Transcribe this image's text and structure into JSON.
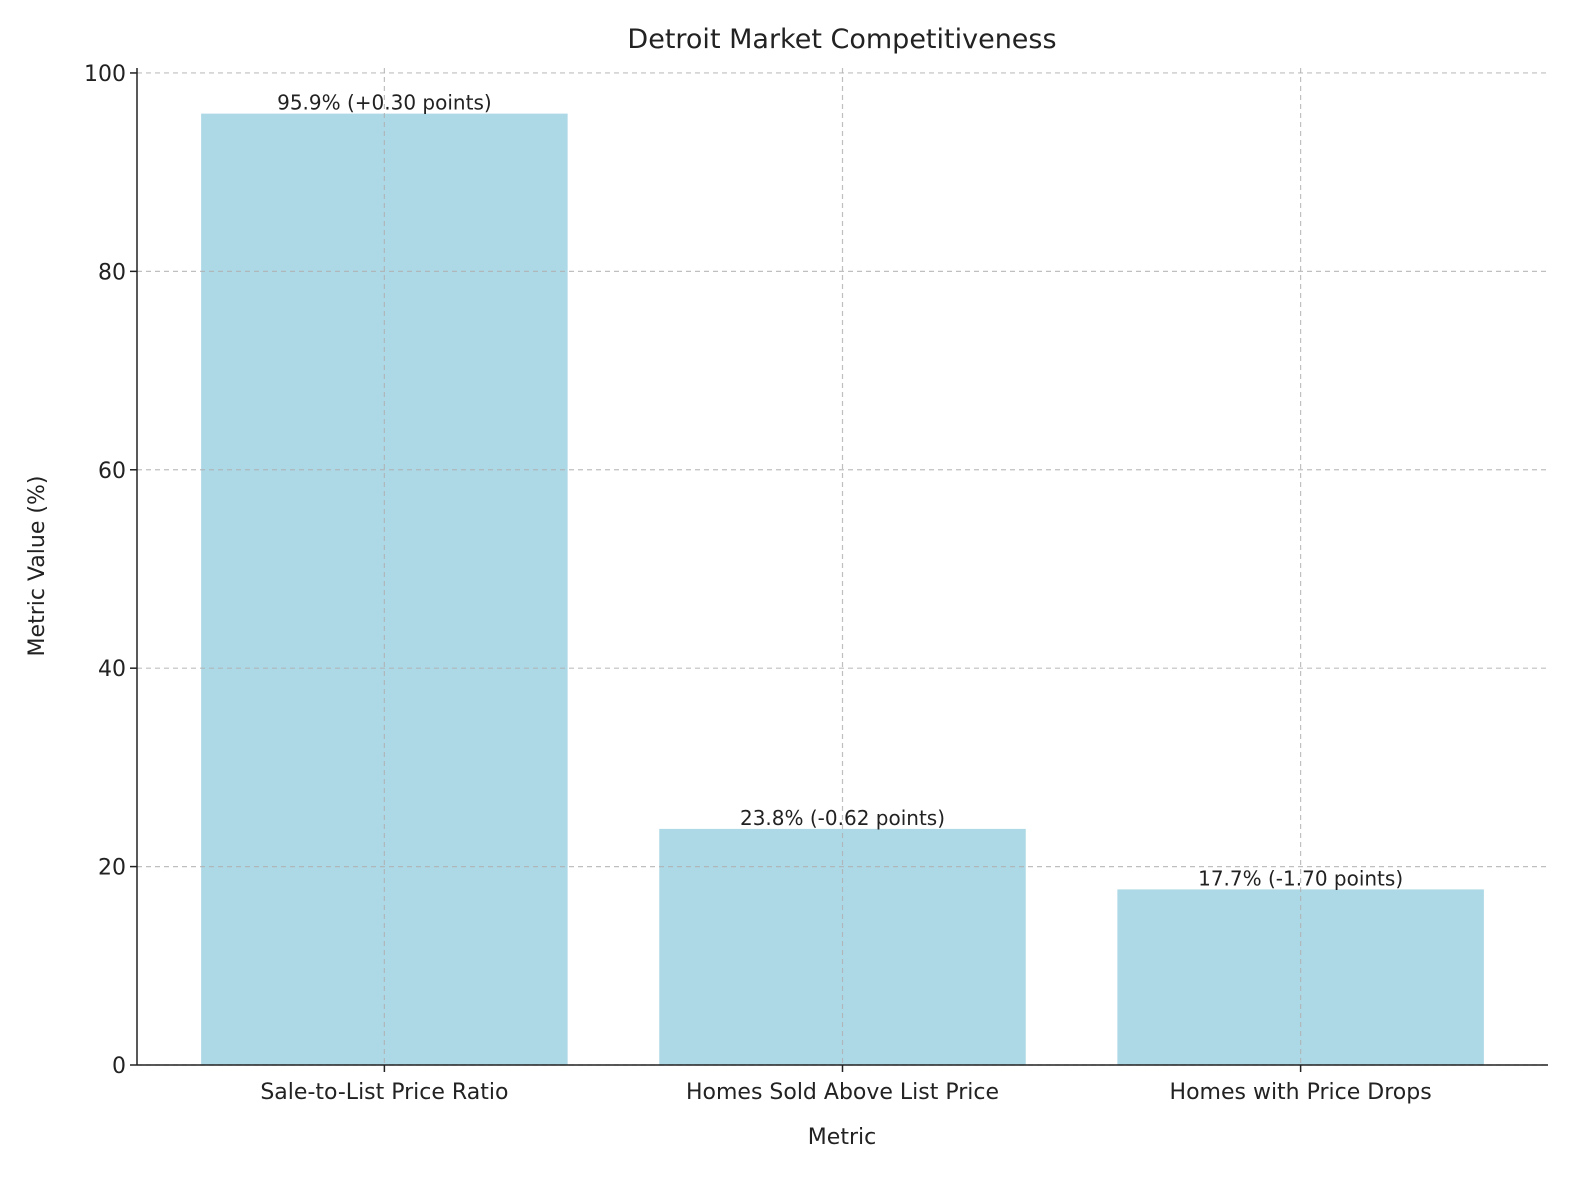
{
  "chart_data": {
    "type": "bar",
    "title": "Detroit Market Competitiveness",
    "xlabel": "Metric",
    "ylabel": "Metric Value (%)",
    "categories": [
      "Sale-to-List Price Ratio",
      "Homes Sold Above List Price",
      "Homes with Price Drops"
    ],
    "values": [
      95.9,
      23.8,
      17.7
    ],
    "data_labels": [
      "95.9% (+0.30 points)",
      "23.8% (-0.62 points)",
      "17.7% (-1.70 points)"
    ],
    "ylim": [
      0,
      100.5
    ],
    "yticks": [
      0,
      20,
      40,
      60,
      80,
      100
    ],
    "grid": true,
    "bar_color": "#ADD8E6"
  }
}
